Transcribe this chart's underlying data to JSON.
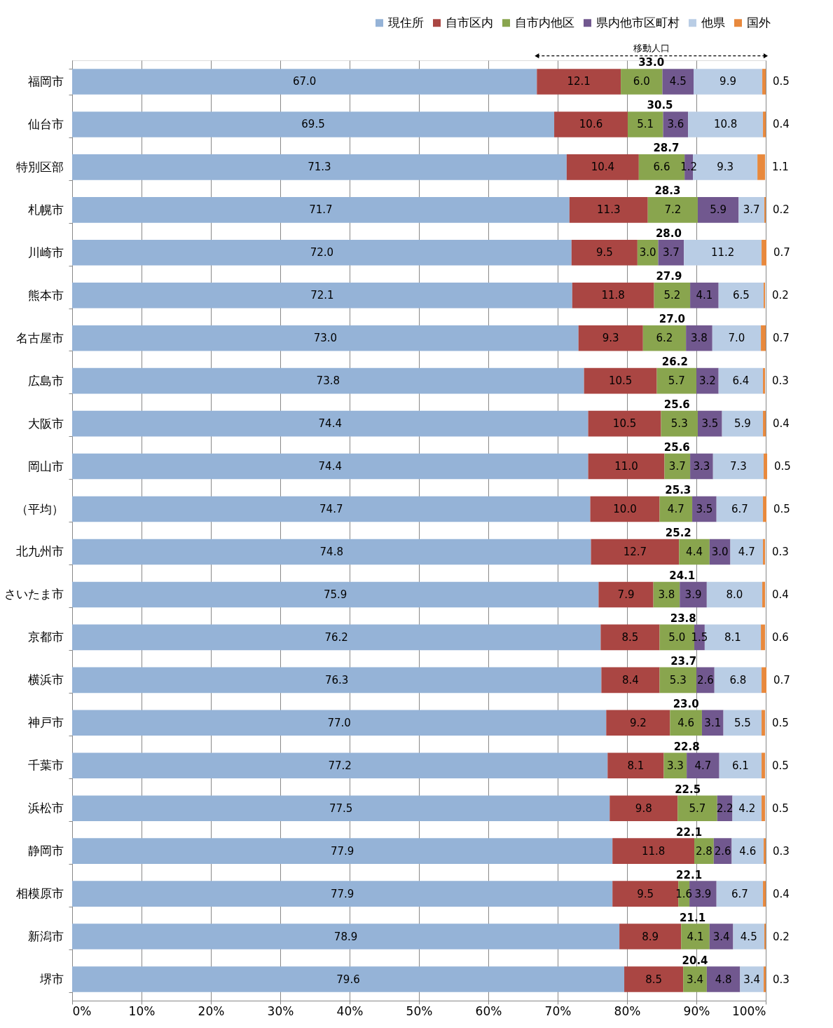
{
  "chart_data": {
    "type": "bar",
    "orientation": "horizontal",
    "stacked": true,
    "grid": "x",
    "legend": "top right",
    "annotations": [
      "移動人口",
      "33.0",
      "30.5",
      "28.7",
      "28.3",
      "28.0",
      "27.9",
      "27.0",
      "26.2",
      "25.6",
      "25.6",
      "25.3",
      "25.2",
      "24.1",
      "23.8",
      "23.7",
      "23.0",
      "22.8",
      "22.5",
      "22.1",
      "22.1",
      "21.1",
      "20.4"
    ],
    "categories": [
      "福岡市",
      "仙台市",
      "特別区部",
      "札幌市",
      "川崎市",
      "熊本市",
      "名古屋市",
      "広島市",
      "大阪市",
      "岡山市",
      "（平均）",
      "北九州市",
      "さいたま市",
      "京都市",
      "横浜市",
      "神戸市",
      "千葉市",
      "浜松市",
      "静岡市",
      "相模原市",
      "新潟市",
      "堺市"
    ],
    "series": [
      {
        "name": "現住所",
        "color": "#95b3d7",
        "values": [
          67.0,
          69.5,
          71.3,
          71.7,
          72.0,
          72.1,
          73.0,
          73.8,
          74.4,
          74.4,
          74.7,
          74.8,
          75.9,
          76.2,
          76.3,
          77.0,
          77.2,
          77.5,
          77.9,
          77.9,
          78.9,
          79.6
        ],
        "value_labels": [
          "67.0",
          "69.5",
          "71.3",
          "71.7",
          "72.0",
          "72.1",
          "73.0",
          "73.8",
          "74.4",
          "74.4",
          "74.7",
          "74.8",
          "75.9",
          "76.2",
          "76.3",
          "77.0",
          "77.2",
          "77.5",
          "77.9",
          "77.9",
          "78.9",
          "79.6"
        ]
      },
      {
        "name": "自市区内",
        "color": "#aa4643",
        "values": [
          12.1,
          10.6,
          10.4,
          11.3,
          9.5,
          11.8,
          9.3,
          10.5,
          10.5,
          11.0,
          10.0,
          12.7,
          7.9,
          8.5,
          8.4,
          9.2,
          8.1,
          9.8,
          11.8,
          9.5,
          8.9,
          8.5
        ],
        "value_labels": [
          "12.1",
          "10.6",
          "10.4",
          "11.3",
          "9.5",
          "11.8",
          "9.3",
          "10.5",
          "10.5",
          "11.0",
          "10.0",
          "12.7",
          "7.9",
          "8.5",
          "8.4",
          "9.2",
          "8.1",
          "9.8",
          "11.8",
          "9.5",
          "8.9",
          "8.5"
        ]
      },
      {
        "name": "自市内他区",
        "color": "#89a54e",
        "values": [
          6.0,
          5.1,
          6.6,
          7.2,
          3.0,
          5.2,
          6.2,
          5.7,
          5.3,
          3.7,
          4.7,
          4.4,
          3.8,
          5.0,
          5.3,
          4.6,
          3.3,
          5.7,
          2.8,
          1.6,
          4.1,
          3.4
        ],
        "value_labels": [
          "6.0",
          "5.1",
          "6.6",
          "7.2",
          "3.0",
          "5.2",
          "6.2",
          "5.7",
          "5.3",
          "3.7",
          "4.7",
          "4.4",
          "3.8",
          "5.0",
          "5.3",
          "4.6",
          "3.3",
          "5.7",
          "2.8",
          "1.6",
          "4.1",
          "3.4"
        ]
      },
      {
        "name": "県内他市区町村",
        "color": "#71588f",
        "values": [
          4.5,
          3.6,
          1.2,
          5.9,
          3.7,
          4.1,
          3.8,
          3.2,
          3.5,
          3.3,
          3.5,
          3.0,
          3.9,
          1.5,
          2.6,
          3.1,
          4.7,
          2.2,
          2.6,
          3.9,
          3.4,
          4.8
        ],
        "value_labels": [
          "4.5",
          "3.6",
          "1.2",
          "5.9",
          "3.7",
          "4.1",
          "3.8",
          "3.2",
          "3.5",
          "3.3",
          "3.5",
          "3.0",
          "3.9",
          "1.5",
          "2.6",
          "3.1",
          "4.7",
          "2.2",
          "2.6",
          "3.9",
          "3.4",
          "4.8"
        ]
      },
      {
        "name": "他県",
        "color": "#b9cde5",
        "values": [
          9.9,
          10.8,
          9.3,
          3.7,
          11.2,
          6.5,
          7.0,
          6.4,
          5.9,
          7.3,
          6.7,
          4.7,
          8.0,
          8.1,
          6.8,
          5.5,
          6.1,
          4.2,
          4.6,
          6.7,
          4.5,
          3.4
        ],
        "value_labels": [
          "9.9",
          "10.8",
          "9.3",
          "3.7",
          "11.2",
          "6.5",
          "7.0",
          "6.4",
          "5.9",
          "7.3",
          "6.7",
          "4.7",
          "8.0",
          "8.1",
          "6.8",
          "5.5",
          "6.1",
          "4.2",
          "4.6",
          "6.7",
          "4.5",
          "3.4"
        ]
      },
      {
        "name": "国外",
        "color": "#e8893d",
        "values": [
          0.5,
          0.4,
          1.1,
          0.2,
          0.7,
          0.2,
          0.7,
          0.3,
          0.4,
          0.5,
          0.5,
          0.3,
          0.4,
          0.6,
          0.7,
          0.5,
          0.5,
          0.5,
          0.3,
          0.4,
          0.2,
          0.3
        ],
        "value_labels": [
          "0.5",
          "0.4",
          "1.1",
          "0.2",
          "0.7",
          "0.2",
          "0.7",
          "0.3",
          "0.4",
          "0.5",
          "0.5",
          "0.3",
          "0.4",
          "0.6",
          "0.7",
          "0.5",
          "0.5",
          "0.5",
          "0.3",
          "0.4",
          "0.2",
          "0.3"
        ]
      }
    ],
    "xlim": [
      0,
      100
    ],
    "xticks": [
      {
        "value": 0,
        "label": "0%"
      },
      {
        "value": 10,
        "label": "10%"
      },
      {
        "value": 20,
        "label": "20%"
      },
      {
        "value": 30,
        "label": "30%"
      },
      {
        "value": 40,
        "label": "40%"
      },
      {
        "value": 50,
        "label": "50%"
      },
      {
        "value": 60,
        "label": "60%"
      },
      {
        "value": 70,
        "label": "70%"
      },
      {
        "value": 80,
        "label": "80%"
      },
      {
        "value": 90,
        "label": "90%"
      },
      {
        "value": 100,
        "label": "100%"
      }
    ]
  }
}
